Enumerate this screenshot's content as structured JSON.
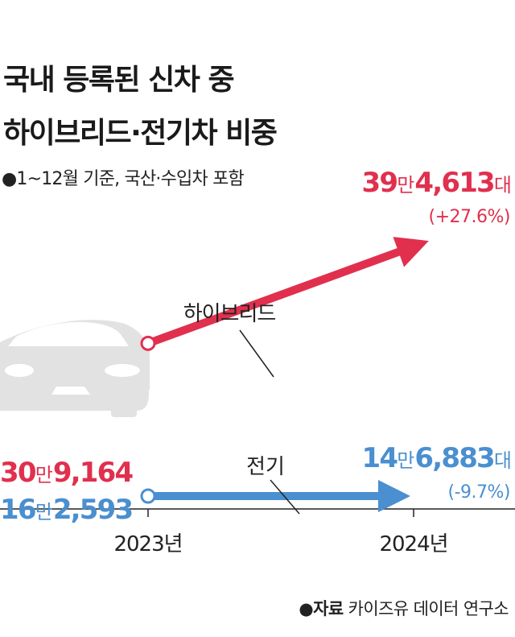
{
  "title_line1": "국내 등록된 신차 중",
  "title_line2": "하이브리드·전기차 비중",
  "subtitle": "●1~12월 기준, 국산·수입차 포함",
  "source_label": "●자료",
  "source_text": "카이즈유 데이터 연구소",
  "colors": {
    "hybrid": "#e0304e",
    "electric": "#4a8fd0",
    "car_icon": "#e2e2e2",
    "axis": "#222222"
  },
  "icons": [
    "car-icon",
    "bullet-icon"
  ],
  "chart_data": {
    "type": "line",
    "x": [
      "2023년",
      "2024년"
    ],
    "series": [
      {
        "name": "하이브리드",
        "values": [
          309164,
          394613
        ],
        "start_label_man": "30",
        "start_label_rest": "9,164",
        "end_label_man": "39",
        "end_label_rest": "4,613",
        "end_label_unit": "대",
        "change": "(+27.6%)"
      },
      {
        "name": "전기",
        "values": [
          162593,
          146883
        ],
        "start_label_man": "16",
        "start_label_rest": "2,593",
        "end_label_man": "14",
        "end_label_rest": "6,883",
        "end_label_unit": "대",
        "change": "(-9.7%)"
      }
    ],
    "man_unit": "만"
  }
}
